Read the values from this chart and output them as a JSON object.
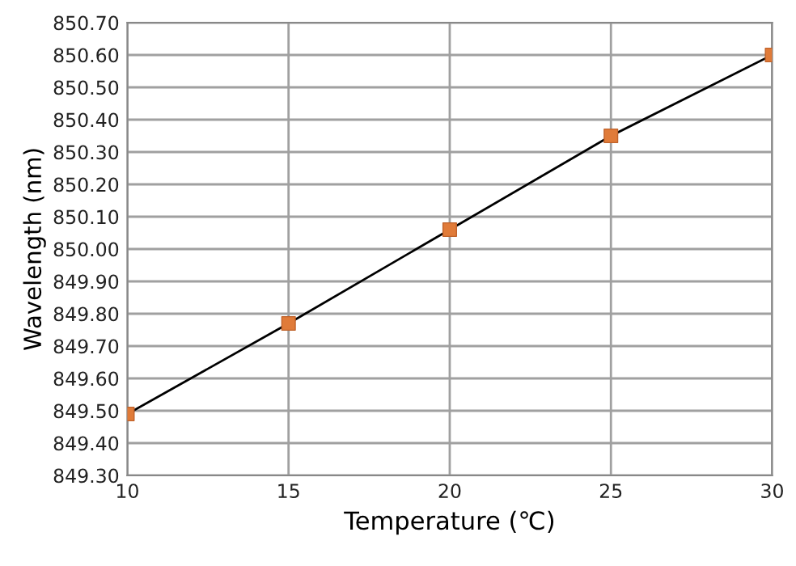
{
  "chart_data": {
    "type": "line",
    "xlabel": "Temperature (℃)",
    "ylabel": "Wavelength (nm)",
    "x": [
      10,
      15,
      20,
      25,
      30
    ],
    "series": [
      {
        "color": "#e07b39",
        "values": [
          849.49,
          849.77,
          850.06,
          850.35,
          850.6
        ]
      }
    ],
    "marker": "square",
    "line_style": "solid",
    "grid": true,
    "xlim": [
      10,
      30
    ],
    "xticks": [
      10,
      15,
      20,
      25,
      30
    ],
    "ylim": [
      849.3,
      850.7
    ],
    "yticks": [
      {
        "value": 849.3,
        "label": "849.30"
      },
      {
        "value": 849.4,
        "label": "849.40"
      },
      {
        "value": 849.5,
        "label": "849.50"
      },
      {
        "value": 849.6,
        "label": "849.60"
      },
      {
        "value": 849.7,
        "label": "849.70"
      },
      {
        "value": 849.8,
        "label": "849.80"
      },
      {
        "value": 849.9,
        "label": "849.90"
      },
      {
        "value": 850.0,
        "label": "850.00"
      },
      {
        "value": 850.1,
        "label": "850.10"
      },
      {
        "value": 850.2,
        "label": "850.20"
      },
      {
        "value": 850.3,
        "label": "850.30"
      },
      {
        "value": 850.4,
        "label": "850.40"
      },
      {
        "value": 850.5,
        "label": "850.50"
      },
      {
        "value": 850.6,
        "label": "850.60"
      },
      {
        "value": 850.7,
        "label": "850.70"
      }
    ]
  }
}
